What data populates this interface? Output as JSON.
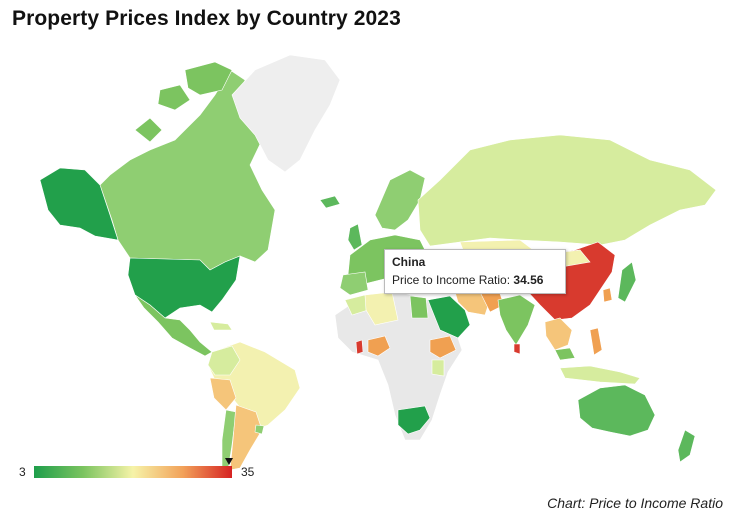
{
  "title": "Property Prices Index by Country 2023",
  "tooltip": {
    "country": "China",
    "metric_label": "Price to Income Ratio: ",
    "value": "34.56"
  },
  "legend": {
    "min_label": "3",
    "max_label": "35",
    "min": 3,
    "max": 35,
    "marker_value": 34.56,
    "colors": [
      "#1e9e4b",
      "#7cc460",
      "#f6f3a8",
      "#f2a25a",
      "#d62222"
    ]
  },
  "source": "Chart: Price to Income Ratio",
  "colors": {
    "no_data": "#e8e8e8",
    "green_dark": "#22a04b",
    "green": "#5cb85c",
    "green_light": "#8fce72",
    "yellow_green": "#d6ec9e",
    "yellow": "#f3f1b0",
    "orange_light": "#f5c57a",
    "orange": "#f0a051",
    "red": "#d83a2e"
  },
  "chart_data": {
    "type": "choropleth",
    "metric": "Price to Income Ratio",
    "range": [
      3,
      35
    ],
    "highlighted": {
      "country": "China",
      "value": 34.56
    }
  }
}
